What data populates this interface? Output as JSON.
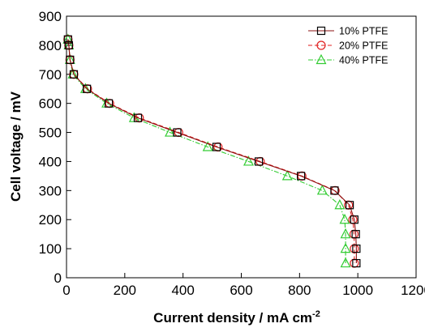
{
  "chart_data": {
    "type": "line",
    "xlabel": "Current density / mA cm",
    "xlabel_superscript": "-2",
    "ylabel": "Cell voltage / mV",
    "xlim": [
      0,
      1200
    ],
    "ylim": [
      0,
      900
    ],
    "xticks": [
      0,
      200,
      400,
      600,
      800,
      1000,
      1200
    ],
    "yticks": [
      0,
      100,
      200,
      300,
      400,
      500,
      600,
      700,
      800,
      900
    ],
    "grid": false,
    "legend_position": "top-right",
    "series": [
      {
        "name": "10% PTFE",
        "color": "#000000",
        "line_color": "#8b1010",
        "marker": "square",
        "line_style": "solid",
        "points": [
          [
            5,
            820
          ],
          [
            8,
            800
          ],
          [
            12,
            750
          ],
          [
            25,
            700
          ],
          [
            70,
            650
          ],
          [
            145,
            600
          ],
          [
            245,
            550
          ],
          [
            380,
            500
          ],
          [
            515,
            450
          ],
          [
            660,
            400
          ],
          [
            805,
            350
          ],
          [
            920,
            300
          ],
          [
            972,
            250
          ],
          [
            988,
            200
          ],
          [
            993,
            150
          ],
          [
            995,
            100
          ],
          [
            995,
            50
          ]
        ]
      },
      {
        "name": "20% PTFE",
        "color": "#e02020",
        "line_color": "#e02020",
        "marker": "circle",
        "line_style": "dashed",
        "points": [
          [
            5,
            820
          ],
          [
            8,
            800
          ],
          [
            12,
            750
          ],
          [
            25,
            700
          ],
          [
            72,
            650
          ],
          [
            148,
            600
          ],
          [
            250,
            550
          ],
          [
            385,
            500
          ],
          [
            520,
            450
          ],
          [
            665,
            400
          ],
          [
            808,
            350
          ],
          [
            922,
            300
          ],
          [
            968,
            250
          ],
          [
            983,
            200
          ],
          [
            987,
            150
          ],
          [
            988,
            100
          ],
          [
            988,
            50
          ]
        ]
      },
      {
        "name": "40% PTFE",
        "color": "#33cc33",
        "line_color": "#33cc33",
        "marker": "triangle",
        "line_style": "dashdot",
        "points": [
          [
            5,
            820
          ],
          [
            8,
            800
          ],
          [
            12,
            750
          ],
          [
            22,
            700
          ],
          [
            65,
            650
          ],
          [
            138,
            600
          ],
          [
            232,
            550
          ],
          [
            355,
            500
          ],
          [
            485,
            450
          ],
          [
            625,
            400
          ],
          [
            758,
            350
          ],
          [
            878,
            300
          ],
          [
            938,
            250
          ],
          [
            955,
            200
          ],
          [
            958,
            150
          ],
          [
            958,
            100
          ],
          [
            958,
            50
          ]
        ]
      }
    ]
  }
}
